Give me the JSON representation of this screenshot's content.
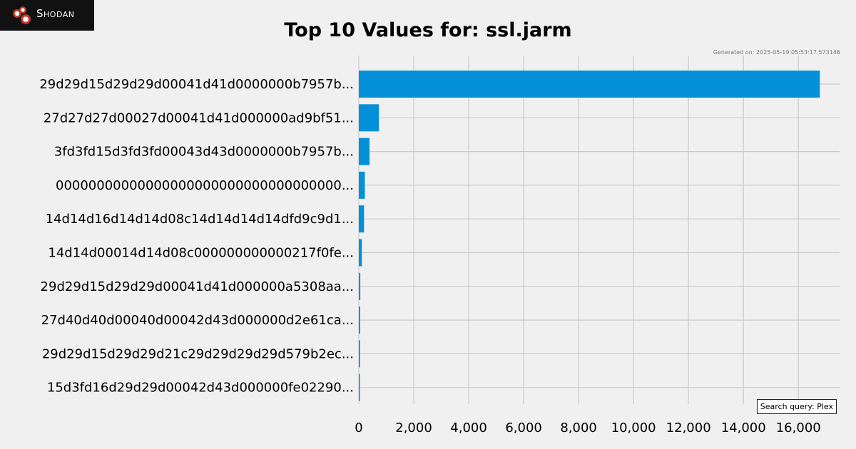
{
  "logo": {
    "text": "Shodan"
  },
  "generated": "Generated on: 2025-05-19 05:53:17.573146",
  "search_query": "Search query: Plex",
  "colors": {
    "bar": "#0390d8",
    "background": "#f0f0f0",
    "grid": "#cbcbcb"
  },
  "chart_data": {
    "type": "bar",
    "orientation": "horizontal",
    "title": "Top 10 Values for: ssl.jarm",
    "xlabel": "",
    "ylabel": "",
    "grid": true,
    "xlim": [
      0,
      17500
    ],
    "xticks": [
      0,
      2000,
      4000,
      6000,
      8000,
      10000,
      12000,
      14000,
      16000
    ],
    "xtick_labels": [
      "0",
      "2,000",
      "4,000",
      "6,000",
      "8,000",
      "10,000",
      "12,000",
      "14,000",
      "16,000"
    ],
    "categories": [
      "29d29d15d29d29d00041d41d0000000b7957b...",
      "27d27d27d00027d00041d41d000000ad9bf51...",
      "3fd3fd15d3fd3fd00043d43d0000000b7957b...",
      "00000000000000000000000000000000000...",
      "14d14d16d14d14d08c14d14d14d14dfd9c9d1...",
      "14d14d00014d14d08c000000000000217f0fe...",
      "29d29d15d29d29d00041d41d000000a5308aa...",
      "27d40d40d00040d00042d43d000000d2e61ca...",
      "29d29d15d29d29d21c29d29d29d29d579b2ec...",
      "15d3fd16d29d29d00042d43d000000fe02290..."
    ],
    "values": [
      16780,
      730,
      390,
      220,
      190,
      110,
      55,
      50,
      45,
      30
    ]
  }
}
